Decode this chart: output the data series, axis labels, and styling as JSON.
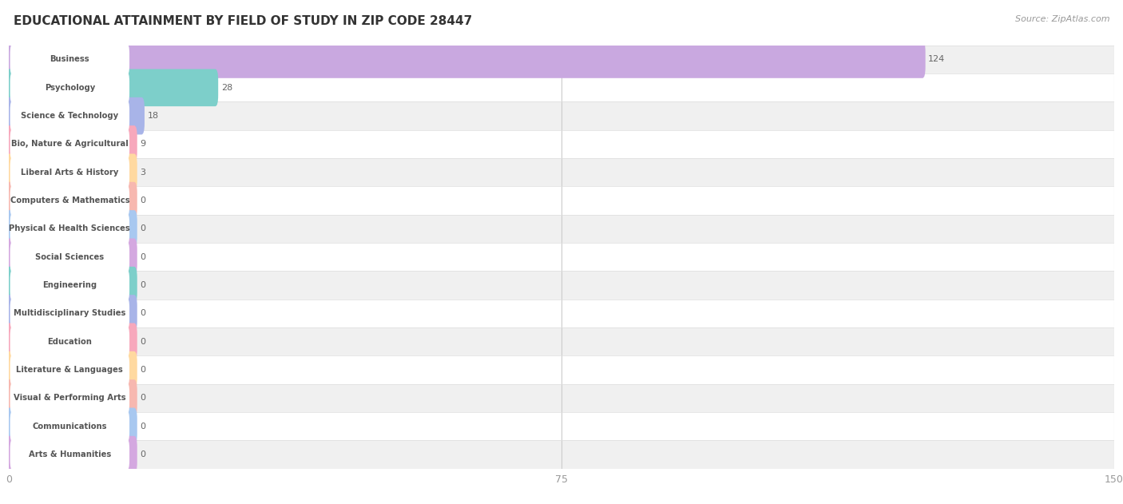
{
  "title": "EDUCATIONAL ATTAINMENT BY FIELD OF STUDY IN ZIP CODE 28447",
  "source": "Source: ZipAtlas.com",
  "categories": [
    "Business",
    "Psychology",
    "Science & Technology",
    "Bio, Nature & Agricultural",
    "Liberal Arts & History",
    "Computers & Mathematics",
    "Physical & Health Sciences",
    "Social Sciences",
    "Engineering",
    "Multidisciplinary Studies",
    "Education",
    "Literature & Languages",
    "Visual & Performing Arts",
    "Communications",
    "Arts & Humanities"
  ],
  "values": [
    124,
    28,
    18,
    9,
    3,
    0,
    0,
    0,
    0,
    0,
    0,
    0,
    0,
    0,
    0
  ],
  "bar_colors": [
    "#c9a8e0",
    "#7dcfca",
    "#a8b4e8",
    "#f7a8bc",
    "#ffd9a0",
    "#f7b8b0",
    "#a8c8f0",
    "#d4a8e0",
    "#7dcfca",
    "#a8b4e8",
    "#f7a8bc",
    "#ffd9a0",
    "#f7b8b0",
    "#a8c8f0",
    "#d4a8e0"
  ],
  "xlim": [
    0,
    150
  ],
  "xticks": [
    0,
    75,
    150
  ],
  "background_color": "#ffffff",
  "row_bg_even": "#f0f0f0",
  "row_bg_odd": "#ffffff",
  "title_fontsize": 11,
  "source_fontsize": 8,
  "min_bar_width": 17
}
